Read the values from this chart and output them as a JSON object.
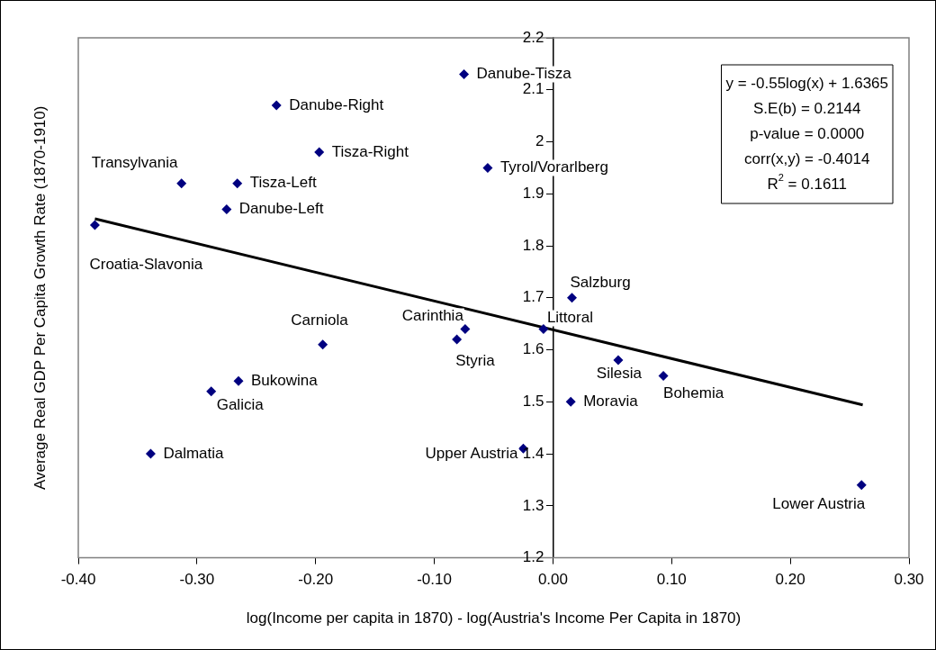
{
  "chart_data": {
    "type": "scatter",
    "xlabel": "log(Income per capita in 1870) - log(Austria's Income Per Capita in 1870)",
    "ylabel": "Average Real GDP Per Capita Growth Rate (1870-1910)",
    "xlim": [
      -0.4,
      0.3
    ],
    "xticks": [
      {
        "value": -0.4,
        "label": "-0.40"
      },
      {
        "value": -0.3,
        "label": "-0.30"
      },
      {
        "value": -0.2,
        "label": "-0.20"
      },
      {
        "value": -0.1,
        "label": "-0.10"
      },
      {
        "value": 0,
        "label": "0.00"
      },
      {
        "value": 0.1,
        "label": "0.10"
      },
      {
        "value": 0.2,
        "label": "0.20"
      },
      {
        "value": 0.3,
        "label": "0.30"
      }
    ],
    "ylim": [
      1.2,
      2.2
    ],
    "yticks": [
      1.2,
      1.3,
      1.4,
      1.5,
      1.6,
      1.7,
      1.8,
      1.9,
      2,
      2.1,
      2.2
    ],
    "grid": false,
    "legend": false,
    "series": [
      {
        "color": "#000080",
        "marker": "diamond",
        "x": [
          -0.386,
          -0.313,
          -0.266,
          -0.275,
          -0.233,
          -0.197,
          -0.075,
          -0.055,
          -0.194,
          -0.074,
          -0.081,
          -0.265,
          -0.288,
          -0.339,
          -0.025,
          0.016,
          -0.008,
          0.055,
          0.093,
          0.015,
          0.26
        ],
        "values": [
          1.84,
          1.92,
          1.92,
          1.87,
          2.07,
          1.98,
          2.13,
          1.95,
          1.61,
          1.64,
          1.62,
          1.54,
          1.52,
          1.4,
          1.41,
          1.7,
          1.64,
          1.58,
          1.55,
          1.5,
          1.34
        ]
      },
      {
        "type": "line",
        "color": "#000000",
        "marker": "none",
        "x": [
          -0.386,
          0.261
        ],
        "values": [
          1.852,
          1.494
        ]
      }
    ],
    "annotations": [
      {
        "text": "Croatia-Slavonia",
        "x": -0.386,
        "y": 1.84
      },
      {
        "text": "Transylvania",
        "x": -0.313,
        "y": 1.92
      },
      {
        "text": "Tisza-Left",
        "x": -0.266,
        "y": 1.92
      },
      {
        "text": "Danube-Left",
        "x": -0.275,
        "y": 1.87
      },
      {
        "text": "Danube-Right",
        "x": -0.233,
        "y": 2.07
      },
      {
        "text": "Tisza-Right",
        "x": -0.197,
        "y": 1.98
      },
      {
        "text": "Danube-Tisza",
        "x": -0.075,
        "y": 2.13
      },
      {
        "text": "Tyrol/Vorarlberg",
        "x": -0.055,
        "y": 1.95
      },
      {
        "text": "Carniola",
        "x": -0.194,
        "y": 1.61
      },
      {
        "text": "Carinthia",
        "x": -0.074,
        "y": 1.64
      },
      {
        "text": "Styria",
        "x": -0.081,
        "y": 1.62
      },
      {
        "text": "Bukowina",
        "x": -0.265,
        "y": 1.54
      },
      {
        "text": "Galicia",
        "x": -0.288,
        "y": 1.52
      },
      {
        "text": "Dalmatia",
        "x": -0.339,
        "y": 1.4
      },
      {
        "text": "Upper Austria",
        "x": -0.025,
        "y": 1.41
      },
      {
        "text": "Salzburg",
        "x": 0.016,
        "y": 1.7
      },
      {
        "text": "Littoral",
        "x": -0.008,
        "y": 1.64
      },
      {
        "text": "Silesia",
        "x": 0.055,
        "y": 1.58
      },
      {
        "text": "Bohemia",
        "x": 0.093,
        "y": 1.55
      },
      {
        "text": "Moravia",
        "x": 0.015,
        "y": 1.5
      },
      {
        "text": "Lower Austria",
        "x": 0.26,
        "y": 1.34
      },
      "y = -0.55log(x) + 1.6365",
      "S.E(b) = 0.2144",
      "p-value = 0.0000",
      "corr(x,y) = -0.4014",
      "R$^{2}$ = 0.1611"
    ]
  }
}
